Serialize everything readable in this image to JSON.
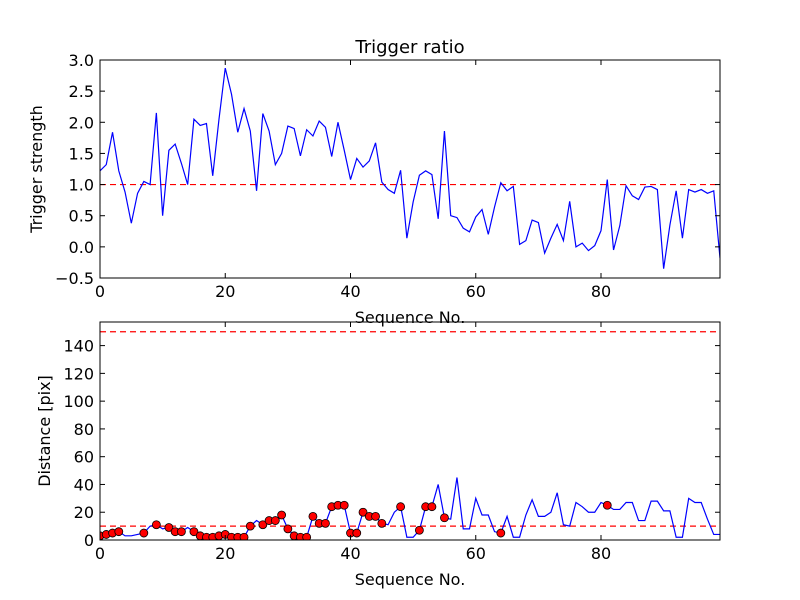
{
  "chart_data": [
    {
      "type": "line",
      "title": "Trigger ratio",
      "xlabel": "Sequence No.",
      "ylabel": "Trigger strength",
      "xlim": [
        0,
        99
      ],
      "ylim": [
        -0.5,
        3.0
      ],
      "xticks": [
        0,
        20,
        40,
        60,
        80
      ],
      "xtick_labels": [
        "0",
        "20",
        "40",
        "60",
        "80"
      ],
      "yticks": [
        -0.5,
        0.0,
        0.5,
        1.0,
        1.5,
        2.0,
        2.5,
        3.0
      ],
      "ytick_labels": [
        "−0.5",
        "0.0",
        "0.5",
        "1.0",
        "1.5",
        "2.0",
        "2.5",
        "3.0"
      ],
      "grid": false,
      "threshold": 1.0,
      "series": [
        {
          "name": "trigger strength",
          "color": "#0000ff",
          "x": [
            0,
            1,
            2,
            3,
            4,
            5,
            6,
            7,
            8,
            9,
            10,
            11,
            12,
            13,
            14,
            15,
            16,
            17,
            18,
            19,
            20,
            21,
            22,
            23,
            24,
            25,
            26,
            27,
            28,
            29,
            30,
            31,
            32,
            33,
            34,
            35,
            36,
            37,
            38,
            39,
            40,
            41,
            42,
            43,
            44,
            45,
            46,
            47,
            48,
            49,
            50,
            51,
            52,
            53,
            54,
            55,
            56,
            57,
            58,
            59,
            60,
            61,
            62,
            63,
            64,
            65,
            66,
            67,
            68,
            69,
            70,
            71,
            72,
            73,
            74,
            75,
            76,
            77,
            78,
            79,
            80,
            81,
            82,
            83,
            84,
            85,
            86,
            87,
            88,
            89,
            90,
            91,
            92,
            93,
            94,
            95,
            96,
            97,
            98,
            99
          ],
          "values": [
            1.22,
            1.32,
            1.84,
            1.22,
            0.88,
            0.38,
            0.86,
            1.05,
            1.0,
            2.15,
            0.5,
            1.55,
            1.65,
            1.34,
            1.0,
            2.05,
            1.95,
            1.98,
            1.14,
            2.05,
            2.87,
            2.45,
            1.84,
            2.22,
            1.86,
            0.9,
            2.14,
            1.86,
            1.32,
            1.5,
            1.94,
            1.9,
            1.46,
            1.88,
            1.78,
            2.02,
            1.92,
            1.45,
            2.0,
            1.55,
            1.08,
            1.42,
            1.28,
            1.38,
            1.67,
            1.04,
            0.92,
            0.86,
            1.23,
            0.14,
            0.72,
            1.15,
            1.22,
            1.16,
            0.45,
            1.86,
            0.5,
            0.47,
            0.3,
            0.24,
            0.48,
            0.6,
            0.2,
            0.64,
            1.03,
            0.9,
            0.97,
            0.04,
            0.1,
            0.43,
            0.39,
            -0.1,
            0.14,
            0.36,
            0.1,
            0.73,
            0.0,
            0.06,
            -0.06,
            0.02,
            0.26,
            1.08,
            -0.05,
            0.34,
            0.98,
            0.82,
            0.76,
            0.96,
            0.97,
            0.92,
            -0.35,
            0.35,
            0.9,
            0.14,
            0.92,
            0.88,
            0.92,
            0.86,
            0.9,
            -0.18
          ]
        }
      ]
    },
    {
      "type": "line",
      "title": "",
      "xlabel": "Sequence No.",
      "ylabel": "Distance [pix]",
      "xlim": [
        0,
        99
      ],
      "ylim": [
        0,
        157
      ],
      "xticks": [
        0,
        20,
        40,
        60,
        80
      ],
      "xtick_labels": [
        "0",
        "20",
        "40",
        "60",
        "80"
      ],
      "yticks": [
        0,
        20,
        40,
        60,
        80,
        100,
        120,
        140
      ],
      "ytick_labels": [
        "0",
        "20",
        "40",
        "60",
        "80",
        "100",
        "120",
        "140"
      ],
      "grid": false,
      "thresholds": [
        150,
        10
      ],
      "series": [
        {
          "name": "distance",
          "color": "#0000ff",
          "x": [
            0,
            1,
            2,
            3,
            4,
            5,
            6,
            7,
            8,
            9,
            10,
            11,
            12,
            13,
            14,
            15,
            16,
            17,
            18,
            19,
            20,
            21,
            22,
            23,
            24,
            25,
            26,
            27,
            28,
            29,
            30,
            31,
            32,
            33,
            34,
            35,
            36,
            37,
            38,
            39,
            40,
            41,
            42,
            43,
            44,
            45,
            46,
            47,
            48,
            49,
            50,
            51,
            52,
            53,
            54,
            55,
            56,
            57,
            58,
            59,
            60,
            61,
            62,
            63,
            64,
            65,
            66,
            67,
            68,
            69,
            70,
            71,
            72,
            73,
            74,
            75,
            76,
            77,
            78,
            79,
            80,
            81,
            82,
            83,
            84,
            85,
            86,
            87,
            88,
            89,
            90,
            91,
            92,
            93,
            94,
            95,
            96,
            97,
            98,
            99
          ],
          "values": [
            3,
            4,
            5,
            6,
            3,
            3,
            4,
            5,
            10,
            11,
            8,
            9,
            6,
            6,
            9,
            6,
            3,
            2,
            2,
            3,
            4,
            2,
            2,
            2,
            10,
            14,
            11,
            14,
            14,
            18,
            8,
            3,
            2,
            2,
            17,
            12,
            12,
            24,
            25,
            25,
            5,
            5,
            20,
            17,
            17,
            12,
            11,
            20,
            24,
            2,
            2,
            7,
            24,
            24,
            40,
            16,
            15,
            45,
            8,
            8,
            30,
            18,
            18,
            6,
            5,
            17,
            2,
            2,
            18,
            29,
            17,
            17,
            20,
            34,
            11,
            10,
            27,
            24,
            20,
            20,
            27,
            25,
            22,
            22,
            27,
            27,
            14,
            14,
            28,
            28,
            21,
            21,
            2,
            2,
            30,
            27,
            27,
            15,
            4,
            4
          ],
          "marker_indices": [
            0,
            1,
            2,
            3,
            7,
            9,
            11,
            12,
            13,
            15,
            16,
            17,
            18,
            19,
            20,
            21,
            22,
            23,
            24,
            26,
            27,
            28,
            29,
            30,
            31,
            32,
            33,
            34,
            35,
            36,
            37,
            38,
            39,
            40,
            41,
            42,
            43,
            44,
            45,
            48,
            51,
            52,
            53,
            55,
            64,
            81
          ],
          "marker_color": "#ff0000"
        }
      ]
    }
  ]
}
